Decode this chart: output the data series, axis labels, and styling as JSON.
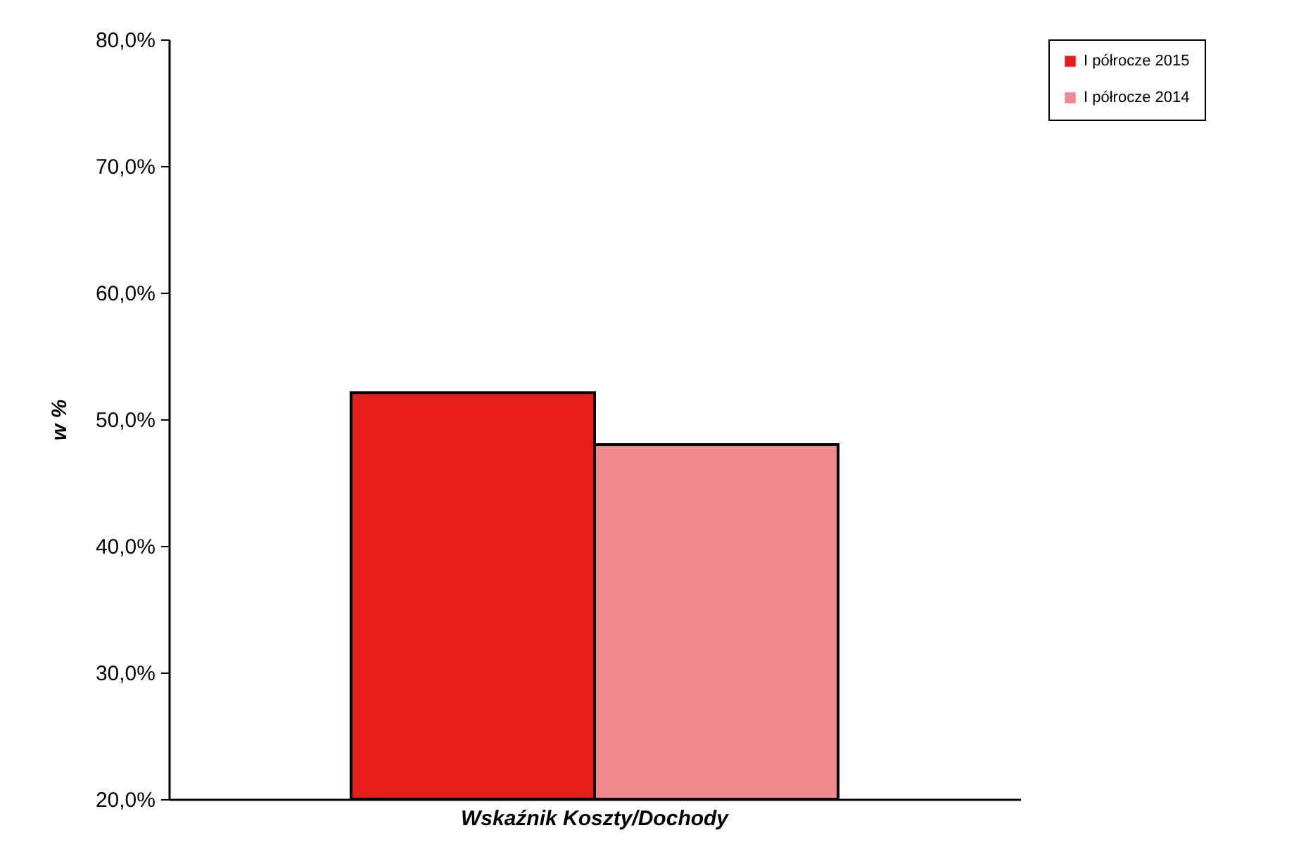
{
  "chart_data": {
    "type": "bar",
    "categories": [
      "Wskaźnik Koszty/Dochody"
    ],
    "ylabel": "w %",
    "series": [
      {
        "name": "I półrocze 2015",
        "color": "#e81c1a",
        "values": [
          52.1
        ]
      },
      {
        "name": "I półrocze 2014",
        "color": "#f08a8f",
        "values": [
          48.0
        ]
      }
    ],
    "ylim": [
      20,
      80
    ],
    "yticks": [
      {
        "value": 20,
        "label": "20,0%"
      },
      {
        "value": 30,
        "label": "30,0%"
      },
      {
        "value": 40,
        "label": "40,0%"
      },
      {
        "value": 50,
        "label": "50,0%"
      },
      {
        "value": 60,
        "label": "60,0%"
      },
      {
        "value": 70,
        "label": "70,0%"
      },
      {
        "value": 80,
        "label": "80,0%"
      }
    ],
    "legend": "right",
    "grid": false
  }
}
